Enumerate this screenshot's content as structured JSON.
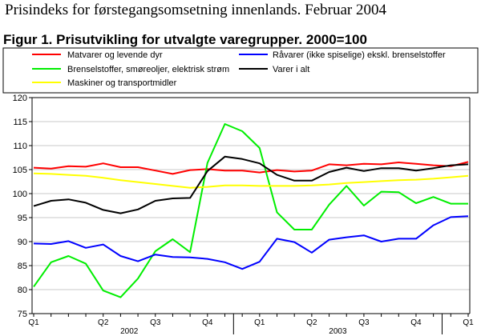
{
  "header": {
    "page_title": "Prisindeks for førstegangsomsetning innenlands. Februar 2004",
    "figure_title": "Figur 1. Prisutvikling for utvalgte varegrupper. 2000=100"
  },
  "chart_data": {
    "type": "line",
    "title": "Figur 1. Prisutvikling for utvalgte varegrupper. 2000=100",
    "xlabel": "",
    "ylabel": "",
    "ylim": [
      75,
      120
    ],
    "yticks": [
      75,
      80,
      85,
      90,
      95,
      100,
      105,
      110,
      115,
      120
    ],
    "grid": true,
    "legend_position": "top",
    "months": [
      "2002-01",
      "2002-02",
      "2002-03",
      "2002-04",
      "2002-05",
      "2002-06",
      "2002-07",
      "2002-08",
      "2002-09",
      "2002-10",
      "2002-11",
      "2002-12",
      "2003-01",
      "2003-02",
      "2003-03",
      "2003-04",
      "2003-05",
      "2003-06",
      "2003-07",
      "2003-08",
      "2003-09",
      "2003-10",
      "2003-11",
      "2003-12",
      "2004-01",
      "2004-02"
    ],
    "quarter_labels": [
      {
        "label": "Q1",
        "month_index": 0
      },
      {
        "label": "Q2",
        "month_index": 4
      },
      {
        "label": "Q3",
        "month_index": 7
      },
      {
        "label": "Q4",
        "month_index": 10
      },
      {
        "label": "Q1",
        "month_index": 13
      },
      {
        "label": "Q2",
        "month_index": 16
      },
      {
        "label": "Q3",
        "month_index": 19
      },
      {
        "label": "Q4",
        "month_index": 22
      },
      {
        "label": "Q1",
        "month_index": 25
      }
    ],
    "year_labels": [
      {
        "label": "2002",
        "month_index": 5.5
      },
      {
        "label": "2003",
        "month_index": 17.5
      }
    ],
    "series": [
      {
        "name": "Matvarer og levende dyr",
        "color": "#ff0000",
        "values": [
          105.4,
          105.2,
          105.7,
          105.6,
          106.3,
          105.5,
          105.5,
          104.8,
          104.1,
          104.9,
          105.1,
          104.8,
          104.8,
          104.4,
          104.9,
          104.6,
          104.8,
          106.1,
          105.9,
          106.2,
          106.1,
          106.5,
          106.2,
          105.9,
          105.7,
          106.6
        ]
      },
      {
        "name": "Brenselstoffer, smøreoljer, elektrisk strøm",
        "color": "#00ee00",
        "values": [
          80.6,
          85.7,
          87.0,
          85.4,
          79.8,
          78.4,
          82.3,
          88.0,
          90.5,
          87.8,
          106.4,
          114.5,
          113.0,
          109.5,
          96.1,
          92.5,
          92.5,
          97.7,
          101.6,
          97.5,
          100.4,
          100.3,
          98.0,
          99.3,
          97.9,
          97.9
        ]
      },
      {
        "name": "Maskiner og transportmidler",
        "color": "#ffff00",
        "values": [
          104.2,
          104.1,
          103.9,
          103.7,
          103.3,
          102.8,
          102.4,
          102.0,
          101.6,
          101.2,
          101.4,
          101.7,
          101.7,
          101.6,
          101.6,
          101.6,
          101.7,
          101.9,
          102.2,
          102.4,
          102.6,
          102.8,
          102.9,
          103.1,
          103.4,
          103.7
        ]
      },
      {
        "name": "Råvarer (ikke spiselige) ekskl. brenselstoffer",
        "color": "#0000ff",
        "values": [
          89.6,
          89.5,
          90.1,
          88.7,
          89.4,
          87.0,
          85.9,
          87.3,
          86.8,
          86.7,
          86.4,
          85.7,
          84.3,
          85.8,
          90.6,
          89.9,
          87.7,
          90.4,
          90.9,
          91.3,
          90.0,
          90.6,
          90.6,
          93.4,
          95.1,
          95.3
        ]
      },
      {
        "name": "Varer i alt",
        "color": "#000000",
        "values": [
          97.4,
          98.5,
          98.8,
          98.1,
          96.6,
          95.9,
          96.7,
          98.5,
          99.0,
          99.1,
          104.7,
          107.7,
          107.2,
          106.3,
          103.9,
          102.7,
          102.7,
          104.5,
          105.4,
          104.7,
          105.3,
          105.3,
          104.8,
          105.3,
          105.9,
          106.1
        ]
      }
    ]
  }
}
